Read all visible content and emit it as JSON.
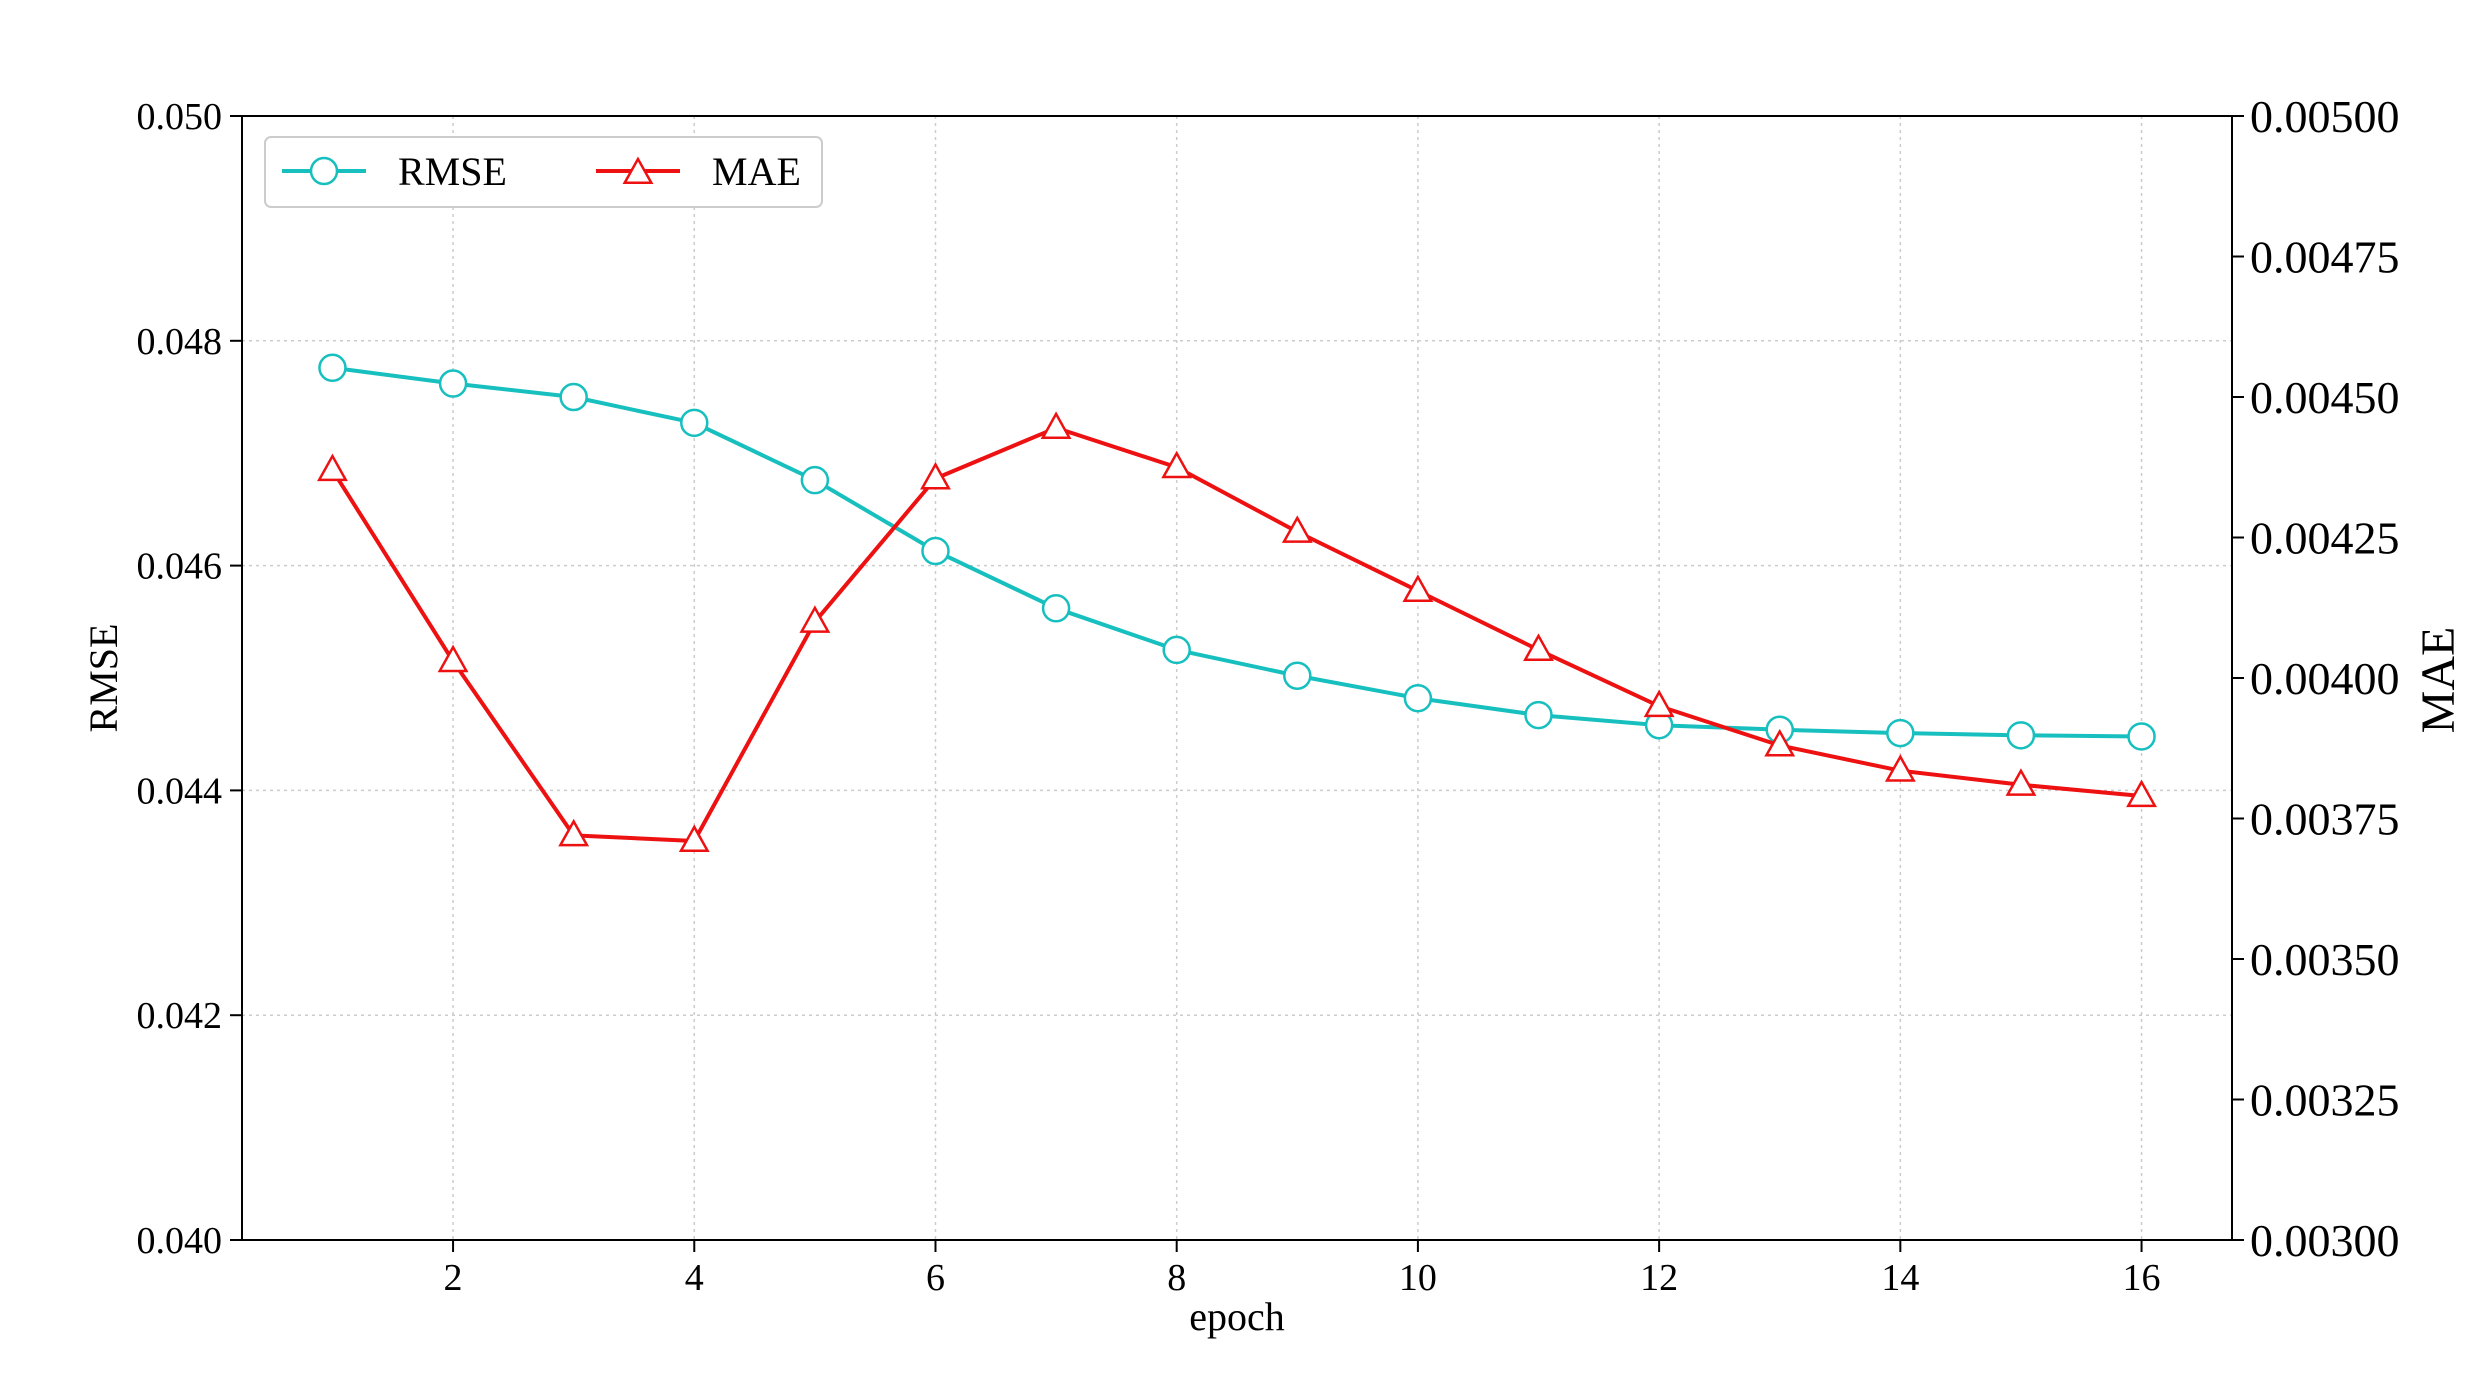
{
  "chart_data": {
    "type": "line",
    "title": "",
    "xlabel": "epoch",
    "ylabel": "RMSE",
    "y2label": "MAE",
    "xlim": [
      0.25,
      16.75
    ],
    "ylim": [
      0.04,
      0.05
    ],
    "y2lim": [
      0.003,
      0.005
    ],
    "xticks": [
      2,
      4,
      6,
      8,
      10,
      12,
      14,
      16
    ],
    "xtick_labels": [
      "2",
      "4",
      "6",
      "8",
      "10",
      "12",
      "14",
      "16"
    ],
    "yticks": [
      0.04,
      0.042,
      0.044,
      0.046,
      0.048,
      0.05
    ],
    "ytick_labels": [
      "0.040",
      "0.042",
      "0.044",
      "0.046",
      "0.048",
      "0.050"
    ],
    "y2ticks": [
      0.003,
      0.00325,
      0.0035,
      0.00375,
      0.004,
      0.00425,
      0.0045,
      0.00475,
      0.005
    ],
    "y2tick_labels": [
      "0.00300",
      "0.00325",
      "0.00350",
      "0.00375",
      "0.00400",
      "0.00425",
      "0.00450",
      "0.00475",
      "0.00500"
    ],
    "grid": true,
    "legend_position": "top-left",
    "x": [
      1,
      2,
      3,
      4,
      5,
      6,
      7,
      8,
      9,
      10,
      11,
      12,
      13,
      14,
      15,
      16
    ],
    "series": [
      {
        "name": "RMSE",
        "axis": "left",
        "color": "#17bfbf",
        "marker": "circle",
        "values": [
          0.04776,
          0.04762,
          0.0475,
          0.04727,
          0.04676,
          0.04613,
          0.04562,
          0.04525,
          0.04502,
          0.04482,
          0.04467,
          0.04458,
          0.04454,
          0.04451,
          0.04449,
          0.04448
        ]
      },
      {
        "name": "MAE",
        "axis": "right",
        "color": "#ee1111",
        "marker": "triangle",
        "values": [
          0.00437,
          0.00403,
          0.00372,
          0.00371,
          0.0041,
          0.004355,
          0.004445,
          0.004375,
          0.00426,
          0.004155,
          0.00405,
          0.00395,
          0.00388,
          0.003835,
          0.00381,
          0.00379
        ]
      }
    ]
  }
}
